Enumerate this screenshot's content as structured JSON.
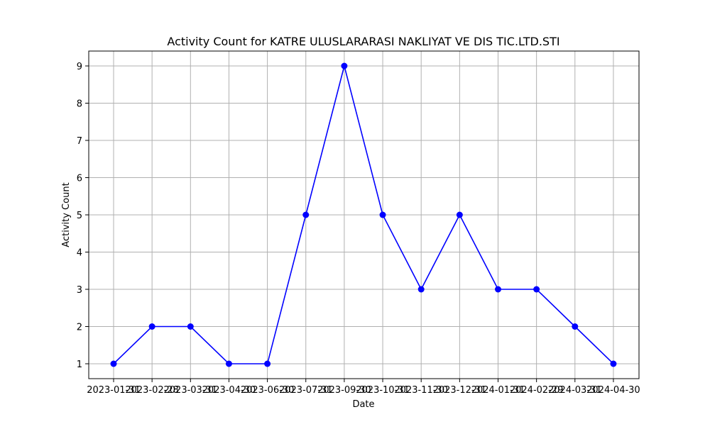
{
  "chart_data": {
    "type": "line",
    "title": "Activity Count for KATRE ULUSLARARASI NAKLIYAT VE DIS TIC.LTD.STI",
    "xlabel": "Date",
    "ylabel": "Activity Count",
    "x": [
      "2023-01-31",
      "2023-02-28",
      "2023-03-31",
      "2023-04-30",
      "2023-06-30",
      "2023-07-31",
      "2023-09-30",
      "2023-10-31",
      "2023-11-30",
      "2023-12-31",
      "2024-01-31",
      "2024-02-29",
      "2024-03-31",
      "2024-04-30"
    ],
    "series": [
      {
        "values": [
          1,
          2,
          2,
          1,
          1,
          5,
          9,
          5,
          3,
          5,
          3,
          3,
          2,
          1
        ],
        "color": "#0000ff",
        "marker": "circle"
      }
    ],
    "yticks": [
      1,
      2,
      3,
      4,
      5,
      6,
      7,
      8,
      9
    ],
    "ylim": [
      0.6,
      9.4
    ],
    "x_scale": "categorical-evenly-spaced",
    "grid": true,
    "legend": "none"
  }
}
